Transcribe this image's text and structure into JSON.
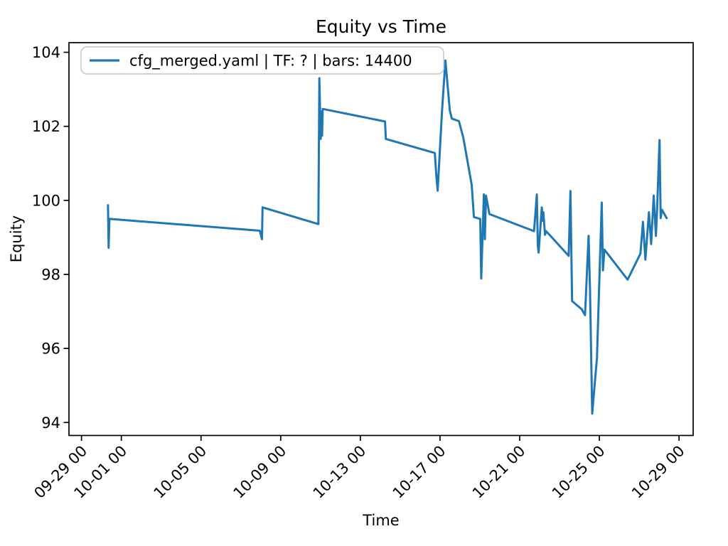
{
  "window": {
    "kind": "matplotlib-figure"
  },
  "colors": {
    "line": "#1f77b4",
    "text": "#000000",
    "spine": "#000000",
    "legend_border": "#cccccc",
    "background": "#ffffff"
  },
  "legend": {
    "entry": "cfg_merged.yaml | TF: ? | bars: 14400",
    "position": "upper left"
  },
  "chart_data": {
    "type": "line",
    "title": "Equity vs Time",
    "xlabel": "Time",
    "ylabel": "Equity",
    "grid": false,
    "legend_position": "upper left",
    "x_unit_note": "x = days since 10-01 00:00",
    "xlim": [
      -2.63,
      28.71
    ],
    "ylim": [
      93.65,
      104.26
    ],
    "x_ticks": [
      {
        "t": -2,
        "label": "09-29 00"
      },
      {
        "t": 0,
        "label": "10-01 00"
      },
      {
        "t": 4,
        "label": "10-05 00"
      },
      {
        "t": 8,
        "label": "10-09 00"
      },
      {
        "t": 12,
        "label": "10-13 00"
      },
      {
        "t": 16,
        "label": "10-17 00"
      },
      {
        "t": 20,
        "label": "10-21 00"
      },
      {
        "t": 24,
        "label": "10-25 00"
      },
      {
        "t": 28,
        "label": "10-29 00"
      }
    ],
    "y_ticks": [
      {
        "v": 94,
        "label": "94"
      },
      {
        "v": 96,
        "label": "96"
      },
      {
        "v": 98,
        "label": "98"
      },
      {
        "v": 100,
        "label": "100"
      },
      {
        "v": 102,
        "label": "102"
      },
      {
        "v": 104,
        "label": "104"
      }
    ],
    "series": [
      {
        "name": "cfg_merged.yaml | TF: ? | bars: 14400",
        "color": "#1f77b4",
        "linewidth": 3,
        "points": [
          [
            -0.67,
            99.87
          ],
          [
            -0.64,
            98.72
          ],
          [
            -0.6,
            99.5
          ],
          [
            6.95,
            99.18
          ],
          [
            7.06,
            98.95
          ],
          [
            7.09,
            99.81
          ],
          [
            9.89,
            99.36
          ],
          [
            9.94,
            103.3
          ],
          [
            10.01,
            101.66
          ],
          [
            10.05,
            102.4
          ],
          [
            10.08,
            101.75
          ],
          [
            10.11,
            102.47
          ],
          [
            13.24,
            102.13
          ],
          [
            13.28,
            101.66
          ],
          [
            15.74,
            101.28
          ],
          [
            15.81,
            100.7
          ],
          [
            15.88,
            100.26
          ],
          [
            16.1,
            102.4
          ],
          [
            16.27,
            103.78
          ],
          [
            16.35,
            103.3
          ],
          [
            16.49,
            102.43
          ],
          [
            16.59,
            102.21
          ],
          [
            16.95,
            102.14
          ],
          [
            17.17,
            101.69
          ],
          [
            17.59,
            100.42
          ],
          [
            17.7,
            99.55
          ],
          [
            18.02,
            99.5
          ],
          [
            18.07,
            97.89
          ],
          [
            18.2,
            100.16
          ],
          [
            18.25,
            98.95
          ],
          [
            18.31,
            100.13
          ],
          [
            18.48,
            99.63
          ],
          [
            20.72,
            99.17
          ],
          [
            20.86,
            100.16
          ],
          [
            20.91,
            98.78
          ],
          [
            20.95,
            98.59
          ],
          [
            21.11,
            99.81
          ],
          [
            21.16,
            99.45
          ],
          [
            21.19,
            99.68
          ],
          [
            21.27,
            99.07
          ],
          [
            21.33,
            99.17
          ],
          [
            22.46,
            98.5
          ],
          [
            22.55,
            100.25
          ],
          [
            22.63,
            97.28
          ],
          [
            23.11,
            97.06
          ],
          [
            23.28,
            96.9
          ],
          [
            23.46,
            99.04
          ],
          [
            23.53,
            97.6
          ],
          [
            23.64,
            94.24
          ],
          [
            23.88,
            95.75
          ],
          [
            24.12,
            99.94
          ],
          [
            24.18,
            98.11
          ],
          [
            24.25,
            98.67
          ],
          [
            25.42,
            97.86
          ],
          [
            26.06,
            98.56
          ],
          [
            26.19,
            99.42
          ],
          [
            26.31,
            98.4
          ],
          [
            26.49,
            99.68
          ],
          [
            26.6,
            98.82
          ],
          [
            26.73,
            100.13
          ],
          [
            26.84,
            99.04
          ],
          [
            26.9,
            99.77
          ],
          [
            27.02,
            101.63
          ],
          [
            27.08,
            99.52
          ],
          [
            27.14,
            99.75
          ],
          [
            27.38,
            99.52
          ]
        ]
      }
    ]
  }
}
